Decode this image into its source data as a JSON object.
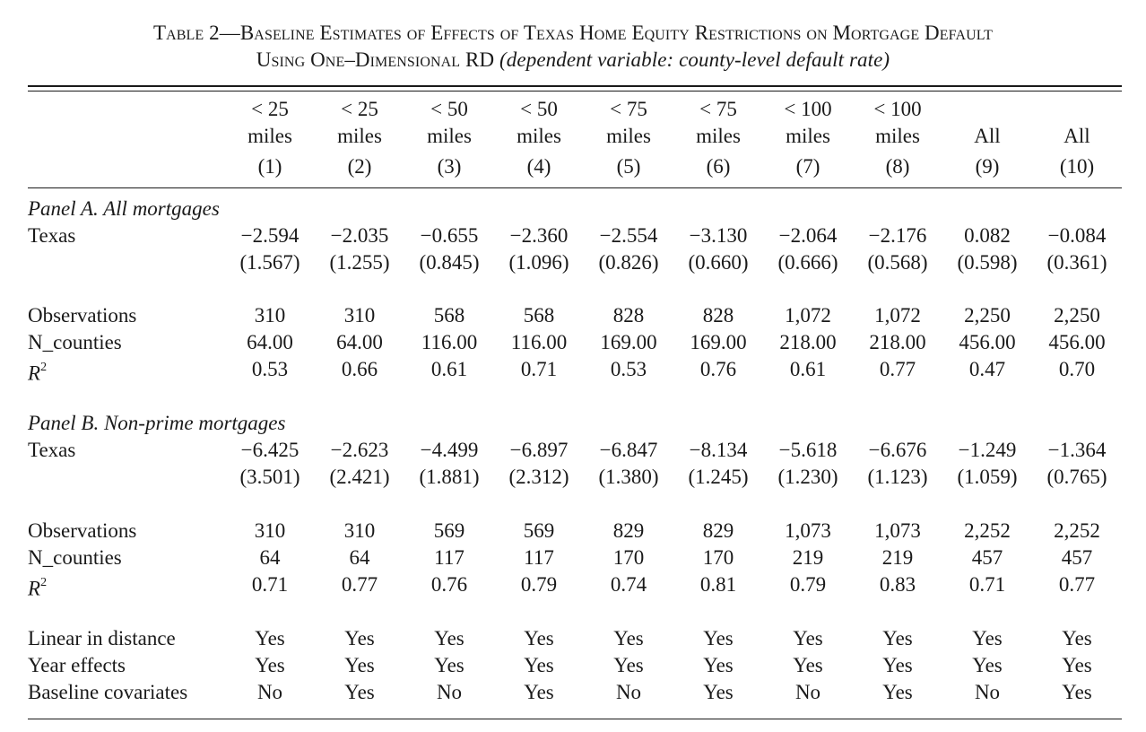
{
  "title": {
    "table_number": "Table 2",
    "line1": "Baseline Estimates of Effects of Texas Home Equity Restrictions on Mortgage Default",
    "line2_main": "Using One–Dimensional RD",
    "line2_paren": "(dependent variable: county-level default rate)"
  },
  "columns": [
    {
      "h1": "< 25",
      "h2": "miles",
      "num": "(1)"
    },
    {
      "h1": "< 25",
      "h2": "miles",
      "num": "(2)"
    },
    {
      "h1": "< 50",
      "h2": "miles",
      "num": "(3)"
    },
    {
      "h1": "< 50",
      "h2": "miles",
      "num": "(4)"
    },
    {
      "h1": "< 75",
      "h2": "miles",
      "num": "(5)"
    },
    {
      "h1": "< 75",
      "h2": "miles",
      "num": "(6)"
    },
    {
      "h1": "< 100",
      "h2": "miles",
      "num": "(7)"
    },
    {
      "h1": "< 100",
      "h2": "miles",
      "num": "(8)"
    },
    {
      "h1": "",
      "h2": "All",
      "num": "(9)"
    },
    {
      "h1": "",
      "h2": "All",
      "num": "(10)"
    }
  ],
  "panel_a": {
    "title": "Panel A. All mortgages",
    "rows": [
      {
        "label": "Texas",
        "values": [
          "−2.594",
          "−2.035",
          "−0.655",
          "−2.360",
          "−2.554",
          "−3.130",
          "−2.064",
          "−2.176",
          "0.082",
          "−0.084"
        ]
      },
      {
        "label": "",
        "values": [
          "(1.567)",
          "(1.255)",
          "(0.845)",
          "(1.096)",
          "(0.826)",
          "(0.660)",
          "(0.666)",
          "(0.568)",
          "(0.598)",
          "(0.361)"
        ]
      },
      {
        "label": "Observations",
        "values": [
          "310",
          "310",
          "568",
          "568",
          "828",
          "828",
          "1,072",
          "1,072",
          "2,250",
          "2,250"
        ]
      },
      {
        "label": "N_counties",
        "values": [
          "64.00",
          "64.00",
          "116.00",
          "116.00",
          "169.00",
          "169.00",
          "218.00",
          "218.00",
          "456.00",
          "456.00"
        ]
      },
      {
        "label": "R",
        "values": [
          "0.53",
          "0.66",
          "0.61",
          "0.71",
          "0.53",
          "0.76",
          "0.61",
          "0.77",
          "0.47",
          "0.70"
        ]
      }
    ]
  },
  "panel_b": {
    "title": "Panel B. Non-prime mortgages",
    "rows": [
      {
        "label": "Texas",
        "values": [
          "−6.425",
          "−2.623",
          "−4.499",
          "−6.897",
          "−6.847",
          "−8.134",
          "−5.618",
          "−6.676",
          "−1.249",
          "−1.364"
        ]
      },
      {
        "label": "",
        "values": [
          "(3.501)",
          "(2.421)",
          "(1.881)",
          "(2.312)",
          "(1.380)",
          "(1.245)",
          "(1.230)",
          "(1.123)",
          "(1.059)",
          "(0.765)"
        ]
      },
      {
        "label": "Observations",
        "values": [
          "310",
          "310",
          "569",
          "569",
          "829",
          "829",
          "1,073",
          "1,073",
          "2,252",
          "2,252"
        ]
      },
      {
        "label": "N_counties",
        "values": [
          "64",
          "64",
          "117",
          "117",
          "170",
          "170",
          "219",
          "219",
          "457",
          "457"
        ]
      },
      {
        "label": "R",
        "values": [
          "0.71",
          "0.77",
          "0.76",
          "0.79",
          "0.74",
          "0.81",
          "0.79",
          "0.83",
          "0.71",
          "0.77"
        ]
      }
    ]
  },
  "specs": [
    {
      "label": "Linear in distance",
      "values": [
        "Yes",
        "Yes",
        "Yes",
        "Yes",
        "Yes",
        "Yes",
        "Yes",
        "Yes",
        "Yes",
        "Yes"
      ]
    },
    {
      "label": "Year effects",
      "values": [
        "Yes",
        "Yes",
        "Yes",
        "Yes",
        "Yes",
        "Yes",
        "Yes",
        "Yes",
        "Yes",
        "Yes"
      ]
    },
    {
      "label": "Baseline covariates",
      "values": [
        "No",
        "Yes",
        "No",
        "Yes",
        "No",
        "Yes",
        "No",
        "Yes",
        "No",
        "Yes"
      ]
    }
  ],
  "r_squared_superscript": "2"
}
